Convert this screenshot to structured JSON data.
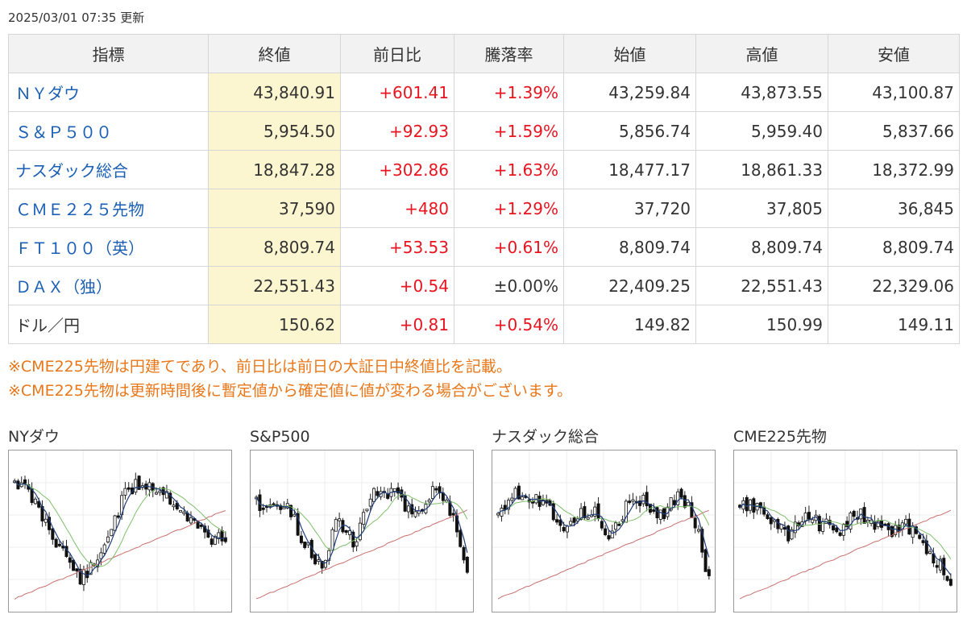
{
  "updated": "2025/03/01 07:35 更新",
  "table": {
    "headers": [
      "指標",
      "終値",
      "前日比",
      "騰落率",
      "始値",
      "高値",
      "安値"
    ],
    "rows": [
      {
        "name": "ＮＹダウ",
        "close": "43,840.91",
        "change": "+601.41",
        "rate": "+1.39%",
        "open": "43,259.84",
        "high": "43,873.55",
        "low": "43,100.87"
      },
      {
        "name": "Ｓ＆Ｐ５００",
        "close": "5,954.50",
        "change": "+92.93",
        "rate": "+1.59%",
        "open": "5,856.74",
        "high": "5,959.40",
        "low": "5,837.66"
      },
      {
        "name": "ナスダック総合",
        "close": "18,847.28",
        "change": "+302.86",
        "rate": "+1.63%",
        "open": "18,477.17",
        "high": "18,861.33",
        "low": "18,372.99"
      },
      {
        "name": "ＣＭＥ２２５先物",
        "close": "37,590",
        "change": "+480",
        "rate": "+1.29%",
        "open": "37,720",
        "high": "37,805",
        "low": "36,845"
      },
      {
        "name": "ＦＴ１００（英）",
        "close": "8,809.74",
        "change": "+53.53",
        "rate": "+0.61%",
        "open": "8,809.74",
        "high": "8,809.74",
        "low": "8,809.74"
      },
      {
        "name": "ＤＡＸ（独）",
        "close": "22,551.43",
        "change": "+0.54",
        "rate": "±0.00%",
        "open": "22,409.25",
        "high": "22,551.43",
        "low": "22,329.06"
      },
      {
        "name": "ドル／円",
        "close": "150.62",
        "change": "+0.81",
        "rate": "+0.54%",
        "open": "149.82",
        "high": "150.99",
        "low": "149.11"
      }
    ]
  },
  "notes": [
    "※CME225先物は円建てであり、前日比は前日の大証日中終値比を記載。",
    "※CME225先物は更新時間後に暫定値から確定値に値が変わる場合がございます。"
  ],
  "charts": [
    {
      "title": "NYダウ"
    },
    {
      "title": "S&P500"
    },
    {
      "title": "ナスダック総合"
    },
    {
      "title": "CME225先物"
    }
  ],
  "colors": {
    "link": "#1a5fb4",
    "up": "#e8141f",
    "note": "#e8771a",
    "close_bg": "#fbf6cf",
    "ma_short": "#1f3d7a",
    "ma_mid": "#7fbf6a",
    "ma_long": "#c97070"
  }
}
